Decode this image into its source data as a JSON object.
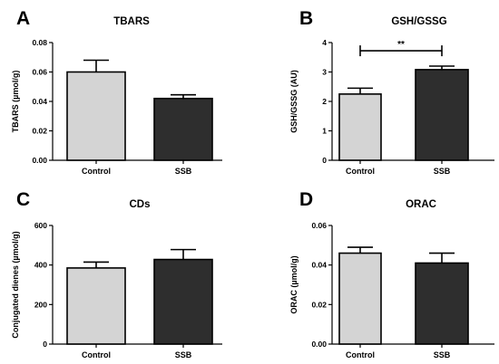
{
  "chart_data": [
    {
      "id": "A",
      "letter": "A",
      "type": "bar",
      "title": "TBARS",
      "ylabel": "TBARS (µmol/g)",
      "categories": [
        "Control",
        "SSB"
      ],
      "values": [
        0.06,
        0.042
      ],
      "errors": [
        0.008,
        0.0025
      ],
      "colors": [
        "#d4d4d4",
        "#2e2e2e"
      ],
      "ylim": [
        0,
        0.08
      ],
      "yticks": [
        "0.00",
        "0.02",
        "0.04",
        "0.06",
        "0.08"
      ],
      "yticks_values": [
        0,
        0.02,
        0.04,
        0.06,
        0.08
      ],
      "significance": null
    },
    {
      "id": "B",
      "letter": "B",
      "type": "bar",
      "title": "GSH/GSSG",
      "ylabel": "GSH/GSSG (AU)",
      "categories": [
        "Control",
        "SSB"
      ],
      "values": [
        2.25,
        3.08
      ],
      "errors": [
        0.2,
        0.12
      ],
      "colors": [
        "#d4d4d4",
        "#2e2e2e"
      ],
      "ylim": [
        0,
        4
      ],
      "yticks": [
        "0",
        "1",
        "2",
        "3",
        "4"
      ],
      "yticks_values": [
        0,
        1,
        2,
        3,
        4
      ],
      "significance": {
        "label": "**",
        "level": 3.72
      }
    },
    {
      "id": "C",
      "letter": "C",
      "type": "bar",
      "title": "CDs",
      "ylabel": "Conjugated dienes (µmol/g)",
      "categories": [
        "Control",
        "SSB"
      ],
      "values": [
        385,
        428
      ],
      "errors": [
        30,
        50
      ],
      "colors": [
        "#d4d4d4",
        "#2e2e2e"
      ],
      "ylim": [
        0,
        600
      ],
      "yticks": [
        "0",
        "200",
        "400",
        "600"
      ],
      "yticks_values": [
        0,
        200,
        400,
        600
      ],
      "significance": null
    },
    {
      "id": "D",
      "letter": "D",
      "type": "bar",
      "title": "ORAC",
      "ylabel": "ORAC (µmol/g)",
      "categories": [
        "Control",
        "SSB"
      ],
      "values": [
        0.046,
        0.041
      ],
      "errors": [
        0.003,
        0.005
      ],
      "colors": [
        "#d4d4d4",
        "#2e2e2e"
      ],
      "ylim": [
        0,
        0.06
      ],
      "yticks": [
        "0.00",
        "0.02",
        "0.04",
        "0.06"
      ],
      "yticks_values": [
        0,
        0.02,
        0.04,
        0.06
      ],
      "significance": null
    }
  ]
}
